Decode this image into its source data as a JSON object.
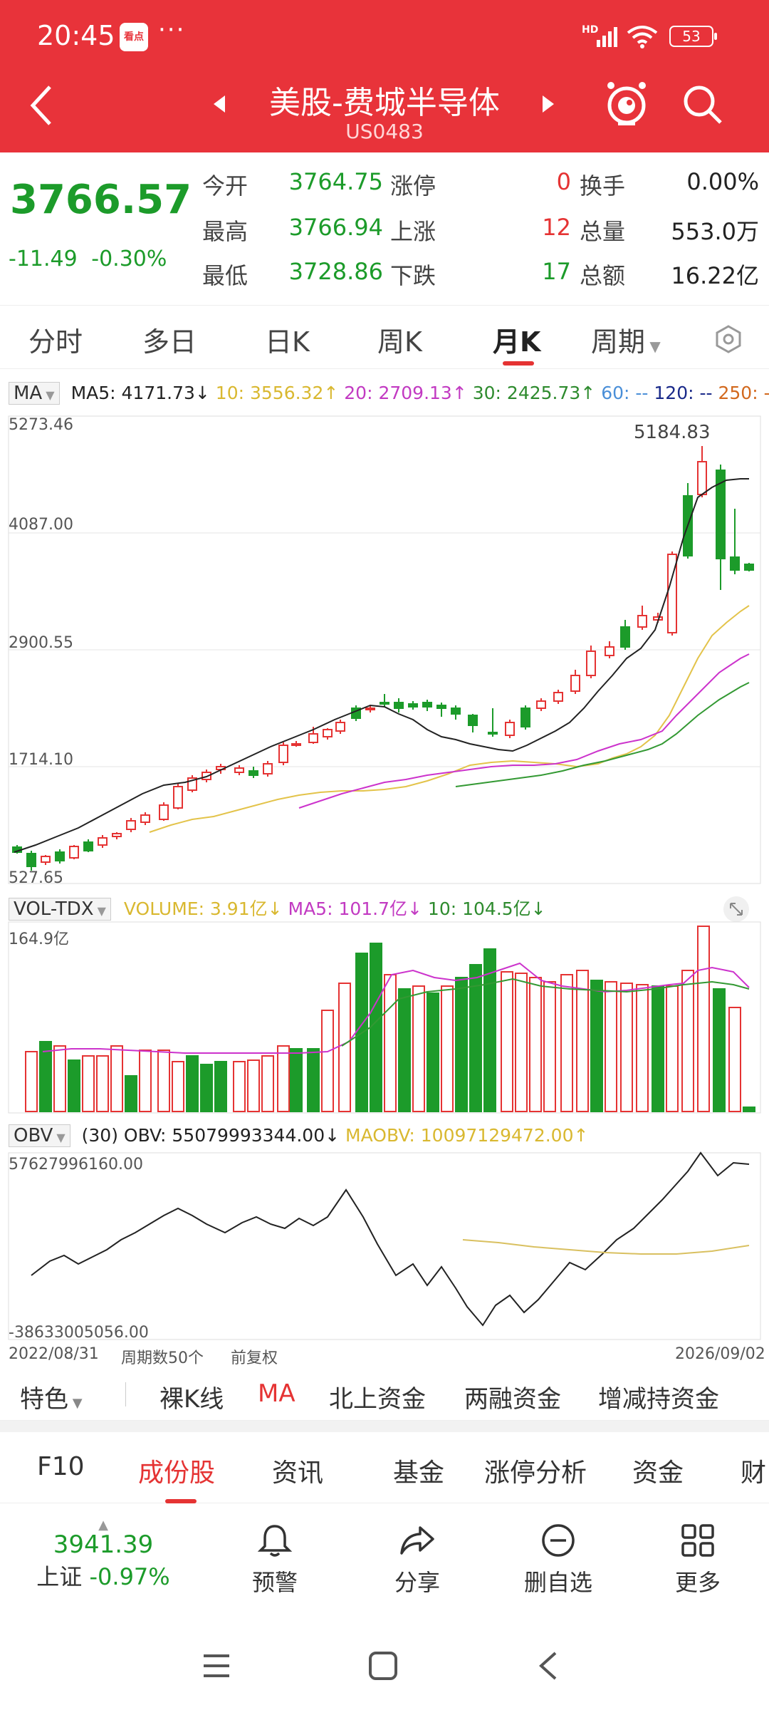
{
  "status": {
    "time": "20:45",
    "app_badge": "看点",
    "dots": "···",
    "hd": "HD",
    "battery": "53"
  },
  "header": {
    "title": "美股-费城半导体",
    "code": "US0483"
  },
  "quote": {
    "price": "3766.57",
    "change": "-11.49",
    "change_pct": "-0.30%",
    "stats": [
      {
        "label": "今开",
        "value": "3764.75"
      },
      {
        "label": "最高",
        "value": "3766.94"
      },
      {
        "label": "最低",
        "value": "3728.86"
      },
      {
        "label": "涨停",
        "value": "0"
      },
      {
        "label": "上涨",
        "value": "12"
      },
      {
        "label": "下跌",
        "value": "17"
      },
      {
        "label": "换手",
        "value": "0.00%"
      },
      {
        "label": "总量",
        "value": "553.0万"
      },
      {
        "label": "总额",
        "value": "16.22亿"
      }
    ]
  },
  "chart_tabs": [
    "分时",
    "多日",
    "日K",
    "周K",
    "月K",
    "周期"
  ],
  "ma": {
    "selector": "MA",
    "ma5": "MA5: 4171.73↓",
    "ma10": "10: 3556.32↑",
    "ma20": "20: 2709.13↑",
    "ma30": "30: 2425.73↑",
    "ma60": "60: --",
    "ma120": "120: --",
    "ma250": "250: -",
    "y_labels": [
      "5273.46",
      "4087.00",
      "2900.55",
      "1714.10",
      "527.65"
    ],
    "max_label": "5184.83"
  },
  "vol": {
    "selector": "VOL-TDX",
    "volume": "VOLUME: 3.91亿↓",
    "ma5": "MA5: 101.7亿↓",
    "ma10": "10: 104.5亿↓",
    "y_top": "164.9亿"
  },
  "obv": {
    "selector": "OBV",
    "obv": "(30) OBV: 55079993344.00↓",
    "maobv": "MAOBV: 10097129472.00↑",
    "y_top": "57627996160.00",
    "y_bottom": "-38633005056.00",
    "x_start": "2022/08/31",
    "period_count": "周期数50个",
    "adjust": "前复权",
    "x_end": "2026/09/02"
  },
  "feature_row": [
    "特色",
    "裸K线",
    "MA",
    "北上资金",
    "两融资金",
    "增减持资金"
  ],
  "info_tabs": [
    "F10",
    "成份股",
    "资讯",
    "基金",
    "涨停分析",
    "资金",
    "财"
  ],
  "bottom": {
    "index_value": "3941.39",
    "index_name": "上证",
    "index_change": "-0.97%",
    "buttons": [
      "预警",
      "分享",
      "删自选",
      "更多"
    ]
  },
  "colors": {
    "brand": "#e8333a",
    "up": "#e53333",
    "down": "#1c9b2a",
    "ma5": "#222222",
    "ma10": "#e0c040",
    "ma20": "#cc33cc",
    "ma30": "#339933"
  }
}
